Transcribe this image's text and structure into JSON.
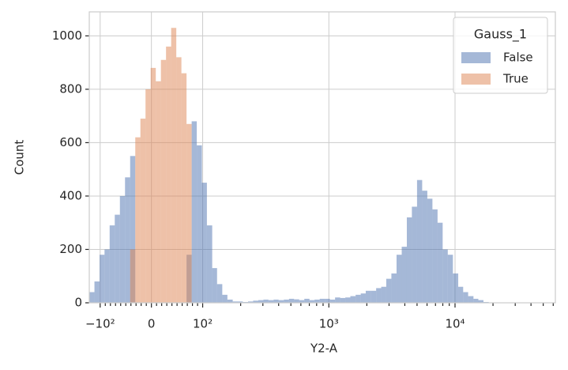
{
  "chart_data": {
    "type": "histogram",
    "x_label": "Y2-A",
    "y_label": "Count",
    "xscale": "symlog",
    "linthresh": 100,
    "bins": [
      -122,
      -111,
      -101,
      -91.5,
      -81.5,
      -71.5,
      -61.5,
      -51.5,
      -41.5,
      -31.5,
      -21.5,
      -11.5,
      -1.5,
      8.5,
      18.5,
      28.5,
      38.5,
      48.5,
      58.5,
      68.5,
      78.5,
      88.5,
      98.5,
      108,
      119,
      130,
      143,
      157,
      173,
      190,
      208,
      229,
      251,
      276,
      303,
      332,
      365,
      400,
      440,
      483,
      530,
      582,
      639,
      702,
      770,
      846,
      929,
      1020,
      1120,
      1230,
      1350,
      1480,
      1630,
      1790,
      1960,
      2160,
      2370,
      2600,
      2850,
      3130,
      3440,
      3780,
      4150,
      4550,
      5000,
      5490,
      6030,
      6620,
      7270,
      7980,
      8760,
      9620,
      10600,
      11600,
      12700,
      14000,
      15300,
      16800,
      18500,
      20300,
      22300,
      24500,
      26900,
      29500,
      32400,
      35600,
      39100,
      42900,
      47100,
      51700,
      56800,
      62400
    ],
    "series": [
      {
        "name": "False",
        "color": "#4c72b0",
        "values": [
          40,
          80,
          180,
          200,
          290,
          330,
          400,
          470,
          550,
          0,
          0,
          0,
          0,
          0,
          0,
          0,
          0,
          0,
          0,
          180,
          680,
          590,
          450,
          290,
          130,
          70,
          30,
          12,
          5,
          5,
          3,
          5,
          8,
          10,
          12,
          10,
          12,
          10,
          12,
          15,
          13,
          10,
          15,
          10,
          12,
          15,
          15,
          12,
          20,
          18,
          20,
          25,
          30,
          35,
          45,
          45,
          55,
          60,
          90,
          110,
          180,
          210,
          320,
          360,
          460,
          420,
          390,
          350,
          300,
          200,
          180,
          110,
          60,
          40,
          25,
          15,
          10,
          3,
          0,
          0,
          0,
          0,
          0,
          0,
          0,
          0,
          0,
          0,
          0,
          0,
          0
        ]
      },
      {
        "name": "True",
        "color": "#dd8452",
        "values": [
          0,
          0,
          0,
          0,
          0,
          0,
          0,
          0,
          200,
          620,
          690,
          800,
          880,
          830,
          910,
          960,
          1030,
          920,
          860,
          670,
          0,
          0,
          0,
          0,
          0,
          0,
          0,
          0,
          0,
          0,
          0,
          0,
          0,
          0,
          0,
          0,
          0,
          0,
          0,
          0,
          0,
          0,
          0,
          0,
          0,
          0,
          0,
          0,
          0,
          0,
          0,
          0,
          0,
          0,
          0,
          0,
          0,
          0,
          0,
          0,
          0,
          0,
          0,
          0,
          0,
          0,
          0,
          0,
          0,
          0,
          0,
          0,
          0,
          0,
          0,
          0,
          0,
          0,
          0,
          0,
          0,
          0,
          0,
          0,
          0,
          0,
          0,
          0,
          0,
          0,
          0
        ]
      }
    ],
    "legend_title": "Gauss_1",
    "legend": "upper right",
    "grid": true,
    "xlim": [
      -122,
      62400
    ],
    "xticks": [
      {
        "value": -100,
        "label": "−10²"
      },
      0,
      {
        "value": 100,
        "label": "10²"
      },
      {
        "value": 1000,
        "label": "10³"
      },
      {
        "value": 10000,
        "label": "10⁴"
      }
    ],
    "xminorticks": [
      -90,
      -80,
      -70,
      -60,
      -50,
      -40,
      -30,
      -20,
      -10,
      10,
      20,
      30,
      40,
      50,
      60,
      70,
      80,
      90,
      200,
      300,
      400,
      500,
      600,
      700,
      800,
      900,
      2000,
      3000,
      4000,
      5000,
      6000,
      7000,
      8000,
      9000,
      20000,
      30000,
      40000,
      50000,
      60000
    ],
    "ylim": [
      0,
      1090
    ],
    "yticks": [
      0,
      200,
      400,
      600,
      800,
      1000
    ]
  }
}
